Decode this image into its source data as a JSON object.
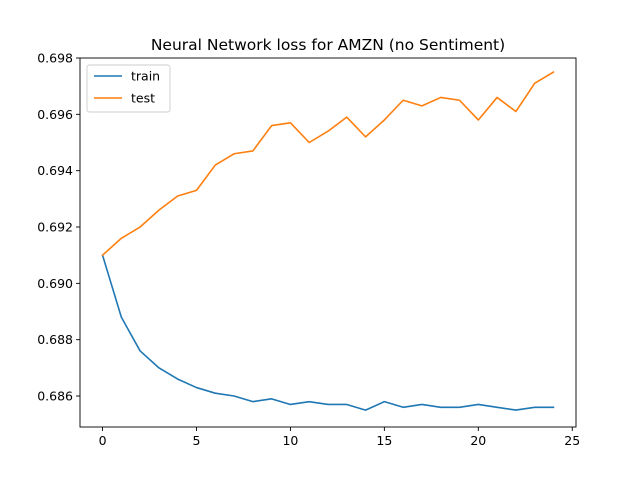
{
  "chart_data": {
    "type": "line",
    "title": "Neural Network loss for AMZN (no Sentiment)",
    "xlabel": "",
    "ylabel": "",
    "xlim": [
      -1.2,
      25.2
    ],
    "ylim": [
      0.6849,
      0.698
    ],
    "x_ticks": [
      0,
      5,
      10,
      15,
      20,
      25
    ],
    "x_tick_labels": [
      "0",
      "5",
      "10",
      "15",
      "20",
      "25"
    ],
    "y_ticks": [
      0.686,
      0.688,
      0.69,
      0.692,
      0.694,
      0.696,
      0.698
    ],
    "y_tick_labels": [
      "0.686",
      "0.688",
      "0.690",
      "0.692",
      "0.694",
      "0.696",
      "0.698"
    ],
    "grid": false,
    "legend_position": "upper-left",
    "x": [
      0,
      1,
      2,
      3,
      4,
      5,
      6,
      7,
      8,
      9,
      10,
      11,
      12,
      13,
      14,
      15,
      16,
      17,
      18,
      19,
      20,
      21,
      22,
      23,
      24
    ],
    "series": [
      {
        "name": "train",
        "color": "#1f77b4",
        "values": [
          0.691,
          0.6888,
          0.6876,
          0.687,
          0.6866,
          0.6863,
          0.6861,
          0.686,
          0.6858,
          0.6859,
          0.6857,
          0.6858,
          0.6857,
          0.6857,
          0.6855,
          0.6858,
          0.6856,
          0.6857,
          0.6856,
          0.6856,
          0.6857,
          0.6856,
          0.6855,
          0.6856,
          0.6856
        ]
      },
      {
        "name": "test",
        "color": "#ff7f0e",
        "values": [
          0.691,
          0.6916,
          0.692,
          0.6926,
          0.6931,
          0.6933,
          0.6942,
          0.6946,
          0.6947,
          0.6956,
          0.6957,
          0.695,
          0.6954,
          0.6959,
          0.6952,
          0.6958,
          0.6965,
          0.6963,
          0.6966,
          0.6965,
          0.6958,
          0.6966,
          0.6961,
          0.6971,
          0.6975
        ]
      }
    ]
  }
}
